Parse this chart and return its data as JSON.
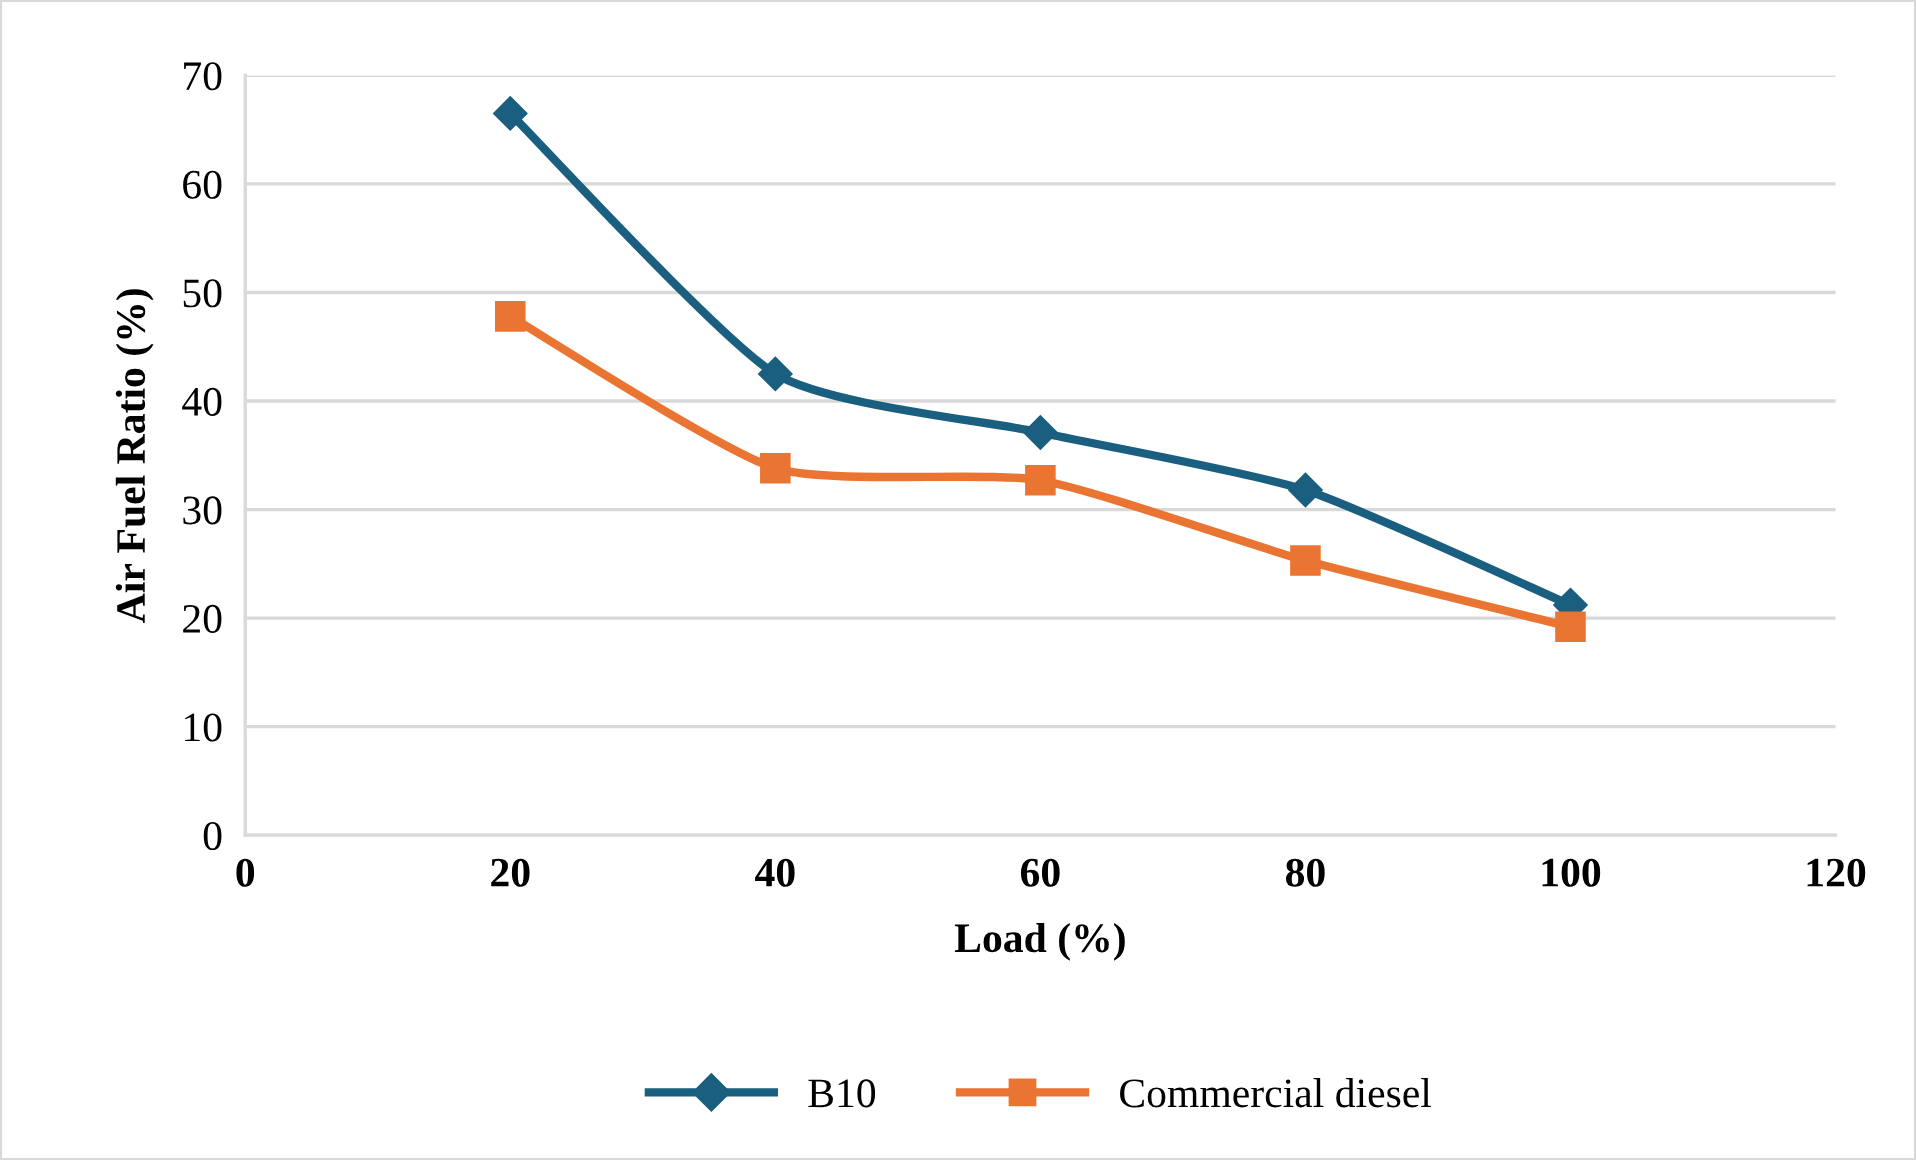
{
  "chart_data": {
    "type": "line",
    "xlabel": "Load (%)",
    "ylabel": "Air Fuel Ratio (%)",
    "x": [
      20,
      40,
      60,
      80,
      100
    ],
    "series": [
      {
        "name": "B10",
        "color": "#1a5f80",
        "marker": "diamond",
        "values": [
          66.5,
          42.5,
          37.1,
          31.8,
          21.2
        ]
      },
      {
        "name": "Commercial diesel",
        "color": "#ea7431",
        "marker": "square",
        "values": [
          47.8,
          33.8,
          32.7,
          25.3,
          19.2
        ]
      }
    ],
    "xlim": [
      0,
      120
    ],
    "xticks": [
      0,
      20,
      40,
      60,
      80,
      100,
      120
    ],
    "ylim": [
      0,
      70
    ],
    "yticks": [
      0,
      10,
      20,
      30,
      40,
      50,
      60,
      70
    ],
    "grid": "y",
    "legend": "bottom"
  }
}
